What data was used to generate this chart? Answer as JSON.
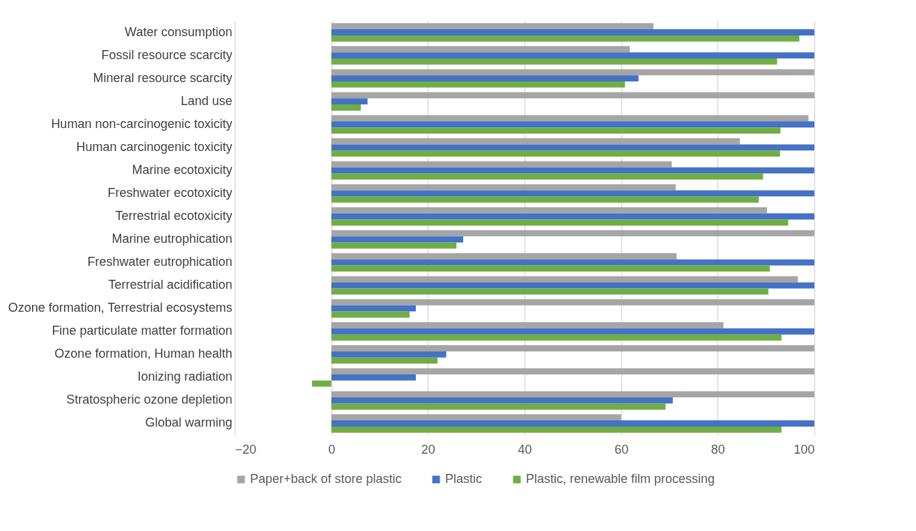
{
  "chart_data": {
    "type": "bar",
    "orientation": "horizontal",
    "categories": [
      "Water consumption",
      "Fossil resource scarcity",
      "Mineral resource scarcity",
      "Land use",
      "Human non-carcinogenic toxicity",
      "Human carcinogenic toxicity",
      "Marine ecotoxicity",
      "Freshwater ecotoxicity",
      "Terrestrial ecotoxicity",
      "Marine eutrophication",
      "Freshwater eutrophication",
      "Terrestrial acidification",
      "Ozone formation, Terrestrial ecosystems",
      "Fine particulate matter formation",
      "Ozone formation, Human health",
      "Ionizing radiation",
      "Stratospheric ozone depletion",
      "Global warming"
    ],
    "series": [
      {
        "name": "Paper+back of store plastic",
        "color": "#a5a5a5",
        "values": [
          66.7,
          61.8,
          100,
          100,
          98.8,
          84.6,
          70.5,
          71.3,
          90.2,
          100,
          71.5,
          96.6,
          100,
          81.2,
          100,
          100,
          100,
          60.0
        ]
      },
      {
        "name": "Plastic",
        "color": "#4472c4",
        "values": [
          100,
          100,
          63.6,
          7.5,
          100,
          100,
          100,
          100,
          100,
          27.3,
          100,
          100,
          17.5,
          100,
          23.8,
          17.5,
          70.7,
          100
        ]
      },
      {
        "name": "Plastic, renewable film processing",
        "color": "#70ad47",
        "values": [
          96.9,
          92.3,
          60.8,
          6.1,
          93.0,
          92.9,
          89.4,
          88.5,
          94.6,
          25.9,
          90.8,
          90.5,
          16.2,
          93.2,
          22.0,
          -4.0,
          69.2,
          93.2
        ]
      }
    ],
    "xlim": [
      -20,
      100
    ],
    "xticks": [
      -20,
      0,
      20,
      40,
      60,
      80,
      100
    ],
    "grid": "x",
    "legend": "bottom"
  }
}
